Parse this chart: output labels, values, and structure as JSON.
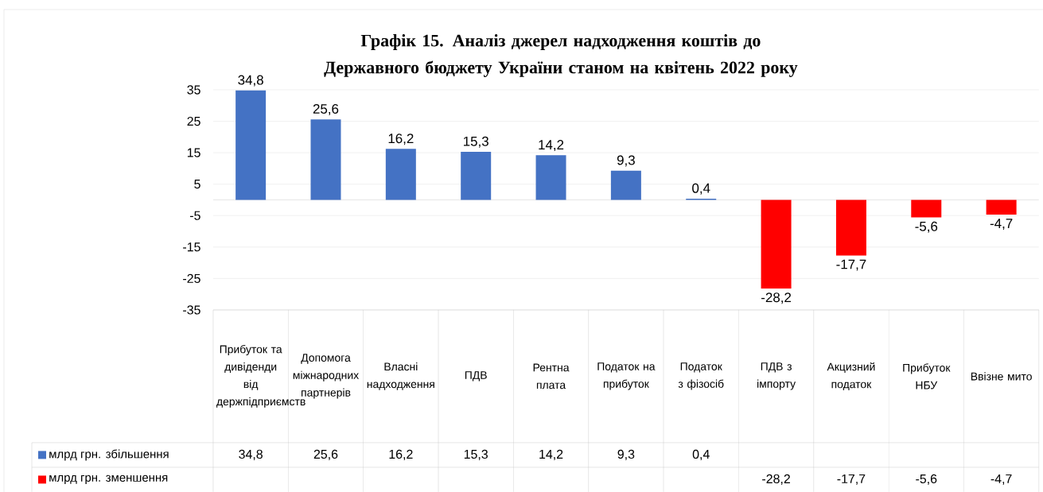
{
  "chart_data": {
    "type": "bar",
    "title": "Графік 15. Аналіз джерел надходження коштів до Державного бюджету України станом на квітень 2022 року",
    "categories": [
      "Прибуток та дивіденди від держпідприємств",
      "Допомога міжнародних партнерів",
      "Власні надходження",
      "ПДВ",
      "Рентна плата",
      "Податок на прибуток",
      "Податок з фізосіб",
      "ПДВ з імпорту",
      "Акцизний податок",
      "Прибуток НБУ",
      "Ввізне мито"
    ],
    "series": [
      {
        "name": "млрд грн. збільшення",
        "color": "#4472c4",
        "values": [
          34.8,
          25.6,
          16.2,
          15.3,
          14.2,
          9.3,
          0.4,
          null,
          null,
          null,
          null
        ],
        "value_labels": [
          "34,8",
          "25,6",
          "16,2",
          "15,3",
          "14,2",
          "9,3",
          "0,4",
          null,
          null,
          null,
          null
        ]
      },
      {
        "name": "млрд грн. зменшення",
        "color": "#ff0000",
        "values": [
          null,
          null,
          null,
          null,
          null,
          null,
          null,
          -28.2,
          -17.7,
          -5.6,
          -4.7
        ],
        "value_labels": [
          null,
          null,
          null,
          null,
          null,
          null,
          null,
          "-28,2",
          "-17,7",
          "-5,6",
          "-4,7"
        ]
      }
    ],
    "stacked": true,
    "ylim": [
      -35,
      35
    ],
    "yticks": [
      -35,
      -25,
      -15,
      -5,
      5,
      15,
      25,
      35
    ],
    "grid": "y",
    "legend": "bottom"
  }
}
